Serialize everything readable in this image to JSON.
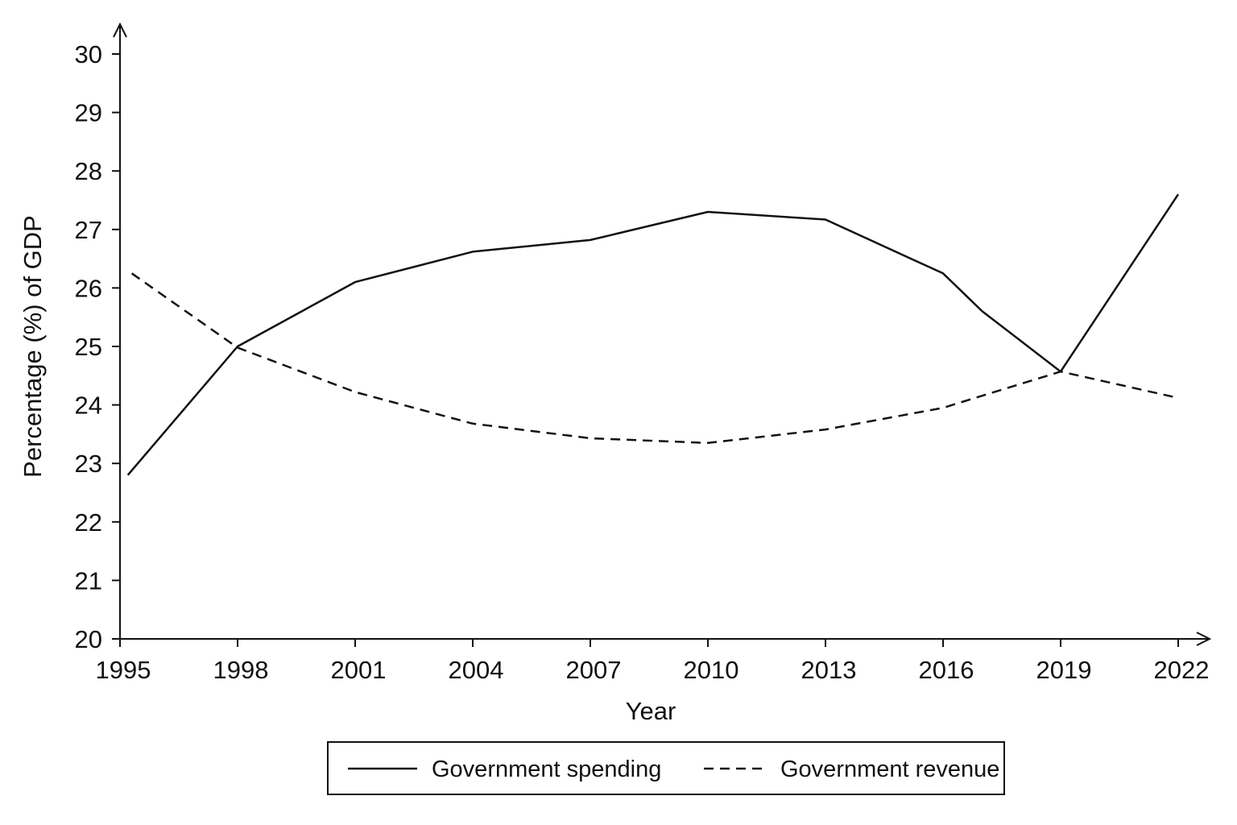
{
  "chart_data": {
    "type": "line",
    "title": "",
    "xlabel": "Year",
    "ylabel": "Percentage (%) of GDP",
    "xlim": [
      1995,
      2022
    ],
    "ylim": [
      20,
      30
    ],
    "x_ticks": [
      1995,
      1998,
      2001,
      2004,
      2007,
      2010,
      2013,
      2016,
      2019,
      2022
    ],
    "y_ticks": [
      20,
      21,
      22,
      23,
      24,
      25,
      26,
      27,
      28,
      29,
      30
    ],
    "grid": false,
    "legend_position": "bottom",
    "series": [
      {
        "name": "Government spending",
        "style": "solid",
        "color": "#111111",
        "points": [
          [
            1995.2,
            22.8
          ],
          [
            1998,
            25.0
          ],
          [
            2001,
            26.1
          ],
          [
            2004,
            26.62
          ],
          [
            2007,
            26.82
          ],
          [
            2010,
            27.3
          ],
          [
            2013,
            27.17
          ],
          [
            2016,
            26.25
          ],
          [
            2017,
            25.6
          ],
          [
            2019,
            24.57
          ],
          [
            2022,
            27.6
          ]
        ]
      },
      {
        "name": "Government revenue",
        "style": "dashed",
        "color": "#111111",
        "points": [
          [
            1995.3,
            26.25
          ],
          [
            1998,
            24.98
          ],
          [
            2001,
            24.22
          ],
          [
            2004,
            23.68
          ],
          [
            2007,
            23.43
          ],
          [
            2010,
            23.35
          ],
          [
            2013,
            23.58
          ],
          [
            2016,
            23.95
          ],
          [
            2019,
            24.57
          ],
          [
            2022,
            24.12
          ]
        ]
      }
    ]
  }
}
